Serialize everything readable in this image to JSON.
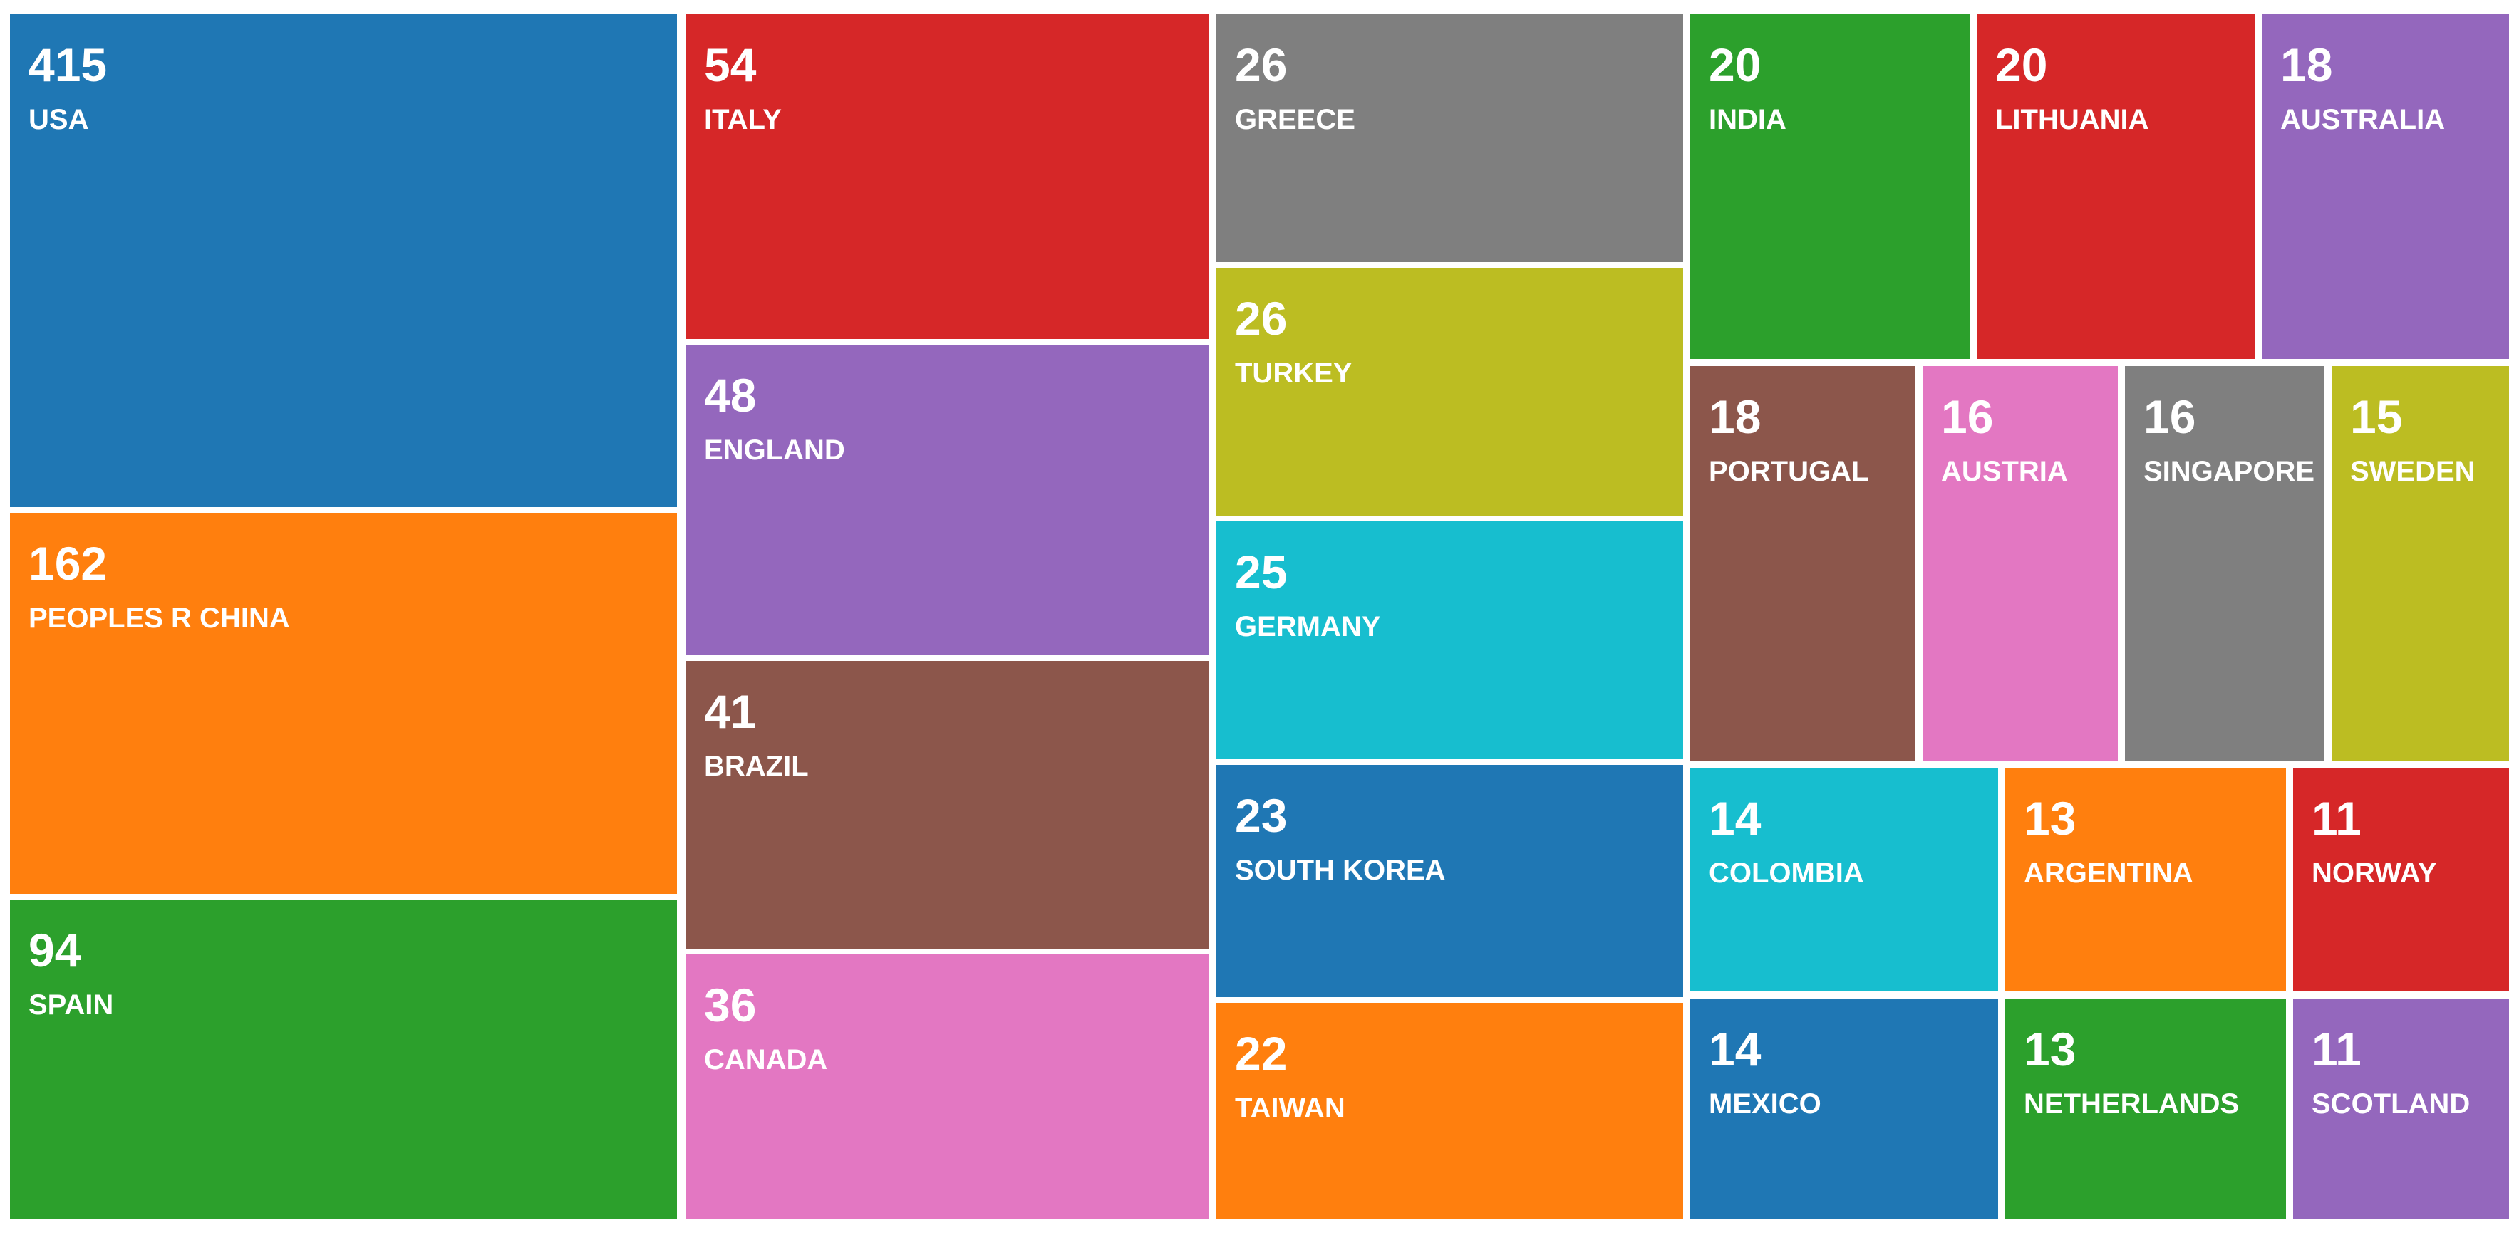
{
  "chart_data": {
    "type": "treemap",
    "title": "",
    "items": [
      {
        "label": "USA",
        "value": 415,
        "color": "#1f77b4"
      },
      {
        "label": "PEOPLES R CHINA",
        "value": 162,
        "color": "#ff7f0e"
      },
      {
        "label": "SPAIN",
        "value": 94,
        "color": "#2ca02c"
      },
      {
        "label": "ITALY",
        "value": 54,
        "color": "#d62728"
      },
      {
        "label": "ENGLAND",
        "value": 48,
        "color": "#9467bd"
      },
      {
        "label": "BRAZIL",
        "value": 41,
        "color": "#8c564b"
      },
      {
        "label": "CANADA",
        "value": 36,
        "color": "#e377c2"
      },
      {
        "label": "GREECE",
        "value": 26,
        "color": "#7f7f7f"
      },
      {
        "label": "TURKEY",
        "value": 26,
        "color": "#bcbd22"
      },
      {
        "label": "GERMANY",
        "value": 25,
        "color": "#17becf"
      },
      {
        "label": "SOUTH KOREA",
        "value": 23,
        "color": "#1f77b4"
      },
      {
        "label": "TAIWAN",
        "value": 22,
        "color": "#ff7f0e"
      },
      {
        "label": "INDIA",
        "value": 20,
        "color": "#2ca02c"
      },
      {
        "label": "LITHUANIA",
        "value": 20,
        "color": "#d62728"
      },
      {
        "label": "AUSTRALIA",
        "value": 18,
        "color": "#9467bd"
      },
      {
        "label": "PORTUGAL",
        "value": 18,
        "color": "#8c564b"
      },
      {
        "label": "AUSTRIA",
        "value": 16,
        "color": "#e377c2"
      },
      {
        "label": "SINGAPORE",
        "value": 16,
        "color": "#7f7f7f"
      },
      {
        "label": "SWEDEN",
        "value": 15,
        "color": "#bcbd22"
      },
      {
        "label": "COLOMBIA",
        "value": 14,
        "color": "#17becf"
      },
      {
        "label": "MEXICO",
        "value": 14,
        "color": "#1f77b4"
      },
      {
        "label": "ARGENTINA",
        "value": 13,
        "color": "#ff7f0e"
      },
      {
        "label": "NETHERLANDS",
        "value": 13,
        "color": "#2ca02c"
      },
      {
        "label": "NORWAY",
        "value": 11,
        "color": "#d62728"
      },
      {
        "label": "SCOTLAND",
        "value": 11,
        "color": "#9467bd"
      }
    ]
  }
}
